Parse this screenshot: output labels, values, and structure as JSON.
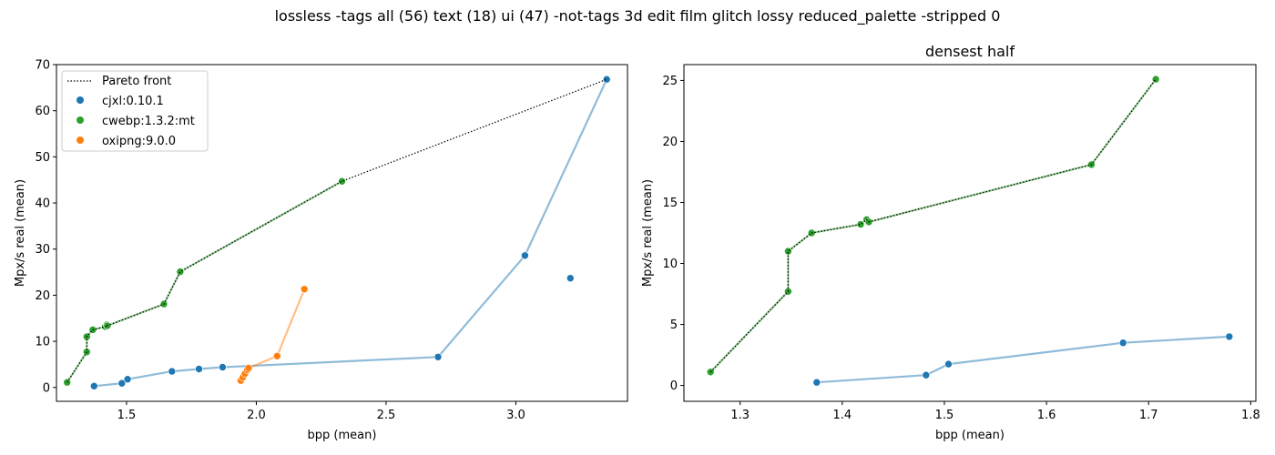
{
  "figure": {
    "suptitle": "lossless -tags all (56) text (18) ui (47) -not-tags 3d edit film glitch lossy reduced_palette -stripped 0"
  },
  "colors": {
    "cjxl": "#1f77b4",
    "cwebp": "#2ca02c",
    "oxipng": "#ff7f0e",
    "pareto": "#000000"
  },
  "legend": {
    "pareto_label": "Pareto front",
    "cjxl_label": "cjxl:0.10.1",
    "cwebp_label": "cwebp:1.3.2:mt",
    "oxipng_label": "oxipng:9.0.0",
    "placement": "upper-left (left panel)"
  },
  "chart_data": [
    {
      "type": "scatter",
      "title": "",
      "xlabel": "bpp (mean)",
      "ylabel": "Mpx/s real (mean)",
      "xlim": [
        1.23,
        3.43
      ],
      "ylim": [
        -3.0,
        70.0
      ],
      "xticks": [
        "1.5",
        "2.0",
        "2.5",
        "3.0"
      ],
      "yticks": [
        "0",
        "10",
        "20",
        "30",
        "40",
        "50",
        "60",
        "70"
      ],
      "grid": false,
      "legend": "upper-left",
      "series": [
        {
          "name": "cjxl:0.10.1",
          "color": "#1f77b4",
          "points": [
            [
              1.375,
              0.3
            ],
            [
              1.482,
              0.9
            ],
            [
              1.504,
              1.8
            ],
            [
              1.675,
              3.5
            ],
            [
              1.779,
              4.0
            ],
            [
              1.87,
              4.4
            ],
            [
              2.7,
              6.6
            ],
            [
              3.035,
              28.6
            ],
            [
              3.21,
              23.7
            ],
            [
              3.35,
              66.8
            ]
          ],
          "line": [
            [
              1.375,
              0.3
            ],
            [
              1.482,
              0.9
            ],
            [
              1.504,
              1.8
            ],
            [
              1.675,
              3.5
            ],
            [
              1.779,
              4.0
            ],
            [
              1.87,
              4.4
            ],
            [
              2.7,
              6.6
            ],
            [
              3.035,
              28.6
            ],
            [
              3.35,
              66.8
            ]
          ]
        },
        {
          "name": "cwebp:1.3.2:mt",
          "color": "#2ca02c",
          "points": [
            [
              1.271,
              1.1
            ],
            [
              1.347,
              7.7
            ],
            [
              1.347,
              11.0
            ],
            [
              1.37,
              12.5
            ],
            [
              1.418,
              13.2
            ],
            [
              1.424,
              13.6
            ],
            [
              1.426,
              13.4
            ],
            [
              1.644,
              18.1
            ],
            [
              1.707,
              25.1
            ],
            [
              2.33,
              44.7
            ]
          ],
          "line": [
            [
              1.271,
              1.1
            ],
            [
              1.347,
              7.7
            ],
            [
              1.347,
              11.0
            ],
            [
              1.37,
              12.5
            ],
            [
              1.418,
              13.2
            ],
            [
              1.424,
              13.6
            ],
            [
              1.426,
              13.4
            ],
            [
              1.644,
              18.1
            ],
            [
              1.707,
              25.1
            ],
            [
              2.33,
              44.7
            ]
          ]
        },
        {
          "name": "oxipng:9.0.0",
          "color": "#ff7f0e",
          "points": [
            [
              1.94,
              1.5
            ],
            [
              1.948,
              2.2
            ],
            [
              1.956,
              3.0
            ],
            [
              1.965,
              3.8
            ],
            [
              1.97,
              4.2
            ],
            [
              2.08,
              6.8
            ],
            [
              2.185,
              21.3
            ]
          ],
          "line": [
            [
              1.94,
              1.5
            ],
            [
              1.948,
              2.2
            ],
            [
              1.956,
              3.0
            ],
            [
              1.965,
              3.8
            ],
            [
              1.97,
              4.2
            ],
            [
              2.08,
              6.8
            ],
            [
              2.185,
              21.3
            ]
          ]
        },
        {
          "name": "Pareto front",
          "color": "#000000",
          "style": "dotted",
          "line": [
            [
              1.271,
              1.1
            ],
            [
              1.347,
              7.7
            ],
            [
              1.347,
              11.0
            ],
            [
              1.37,
              12.5
            ],
            [
              1.418,
              13.2
            ],
            [
              1.424,
              13.6
            ],
            [
              1.426,
              13.4
            ],
            [
              1.644,
              18.1
            ],
            [
              1.707,
              25.1
            ],
            [
              2.33,
              44.7
            ],
            [
              3.35,
              66.8
            ]
          ]
        }
      ]
    },
    {
      "type": "scatter",
      "title": "densest half",
      "xlabel": "bpp (mean)",
      "ylabel": "Mpx/s real (mean)",
      "xlim": [
        1.245,
        1.805
      ],
      "ylim": [
        -1.3,
        26.3
      ],
      "xticks": [
        "1.3",
        "1.4",
        "1.5",
        "1.6",
        "1.7",
        "1.8"
      ],
      "yticks": [
        "0",
        "5",
        "10",
        "15",
        "20",
        "25"
      ],
      "grid": false,
      "series": [
        {
          "name": "cjxl:0.10.1",
          "color": "#1f77b4",
          "points": [
            [
              1.375,
              0.25
            ],
            [
              1.482,
              0.85
            ],
            [
              1.504,
              1.75
            ],
            [
              1.675,
              3.5
            ],
            [
              1.779,
              4.0
            ]
          ],
          "line": [
            [
              1.375,
              0.25
            ],
            [
              1.482,
              0.85
            ],
            [
              1.504,
              1.75
            ],
            [
              1.675,
              3.5
            ],
            [
              1.779,
              4.0
            ]
          ]
        },
        {
          "name": "cwebp:1.3.2:mt",
          "color": "#2ca02c",
          "points": [
            [
              1.271,
              1.1
            ],
            [
              1.347,
              7.7
            ],
            [
              1.347,
              11.0
            ],
            [
              1.37,
              12.5
            ],
            [
              1.418,
              13.2
            ],
            [
              1.424,
              13.6
            ],
            [
              1.426,
              13.4
            ],
            [
              1.644,
              18.1
            ],
            [
              1.707,
              25.1
            ]
          ],
          "line": [
            [
              1.271,
              1.1
            ],
            [
              1.347,
              7.7
            ],
            [
              1.347,
              11.0
            ],
            [
              1.37,
              12.5
            ],
            [
              1.418,
              13.2
            ],
            [
              1.424,
              13.6
            ],
            [
              1.426,
              13.4
            ],
            [
              1.644,
              18.1
            ],
            [
              1.707,
              25.1
            ]
          ]
        },
        {
          "name": "Pareto front",
          "color": "#000000",
          "style": "dotted",
          "line": [
            [
              1.271,
              1.1
            ],
            [
              1.347,
              7.7
            ],
            [
              1.347,
              11.0
            ],
            [
              1.37,
              12.5
            ],
            [
              1.418,
              13.2
            ],
            [
              1.424,
              13.6
            ],
            [
              1.426,
              13.4
            ],
            [
              1.644,
              18.1
            ],
            [
              1.707,
              25.1
            ]
          ]
        }
      ]
    }
  ]
}
